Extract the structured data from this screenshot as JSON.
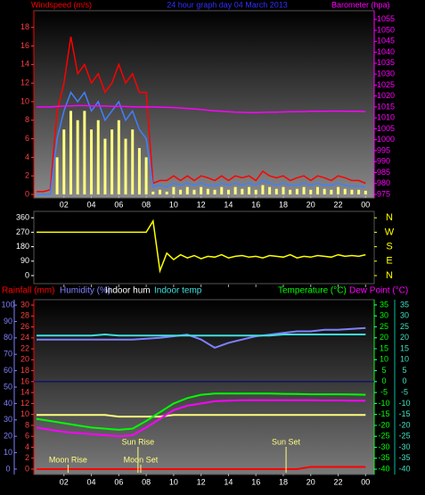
{
  "chart_data": [
    {
      "type": "line",
      "title": "24 hour graph day  04 March 2013",
      "ylabel": "Windspeed (m/s)",
      "y2label": "Barometer (hpa)",
      "x": [
        0,
        0.5,
        1,
        1.5,
        2,
        2.5,
        3,
        3.5,
        4,
        4.5,
        5,
        5.5,
        6,
        6.5,
        7,
        7.5,
        8,
        8.5,
        9,
        9.5,
        10,
        10.5,
        11,
        11.5,
        12,
        12.5,
        13,
        13.5,
        14,
        14.5,
        15,
        15.5,
        16,
        16.5,
        17,
        17.5,
        18,
        18.5,
        19,
        19.5,
        20,
        20.5,
        21,
        21.5,
        22,
        22.5,
        23,
        23.5,
        24
      ],
      "xlim": [
        0,
        24.5
      ],
      "xticks": [
        {
          "value": 2,
          "label": "02"
        },
        {
          "value": 4,
          "label": "04"
        },
        {
          "value": 6,
          "label": "06"
        },
        {
          "value": 8,
          "label": "08"
        },
        10,
        12,
        14,
        16,
        18,
        20,
        22,
        {
          "value": 24,
          "label": "00"
        }
      ],
      "ylim": [
        0,
        19.8
      ],
      "yticks": [
        0,
        2,
        4,
        6,
        8,
        10,
        12,
        14,
        16,
        18
      ],
      "y2lim": [
        975,
        1059
      ],
      "y2ticks": [
        975,
        980,
        985,
        990,
        995,
        1000,
        1005,
        1010,
        1015,
        1020,
        1025,
        1030,
        1035,
        1040,
        1045,
        1050,
        1055
      ],
      "series": [
        {
          "color": "#ffff80",
          "mark": "bar",
          "values": [
            0,
            0,
            0,
            4,
            7,
            9,
            8,
            9,
            7,
            8,
            6,
            7,
            8,
            6,
            7,
            5,
            4,
            0.3,
            0.5,
            0.3,
            0.8,
            0.5,
            0.8,
            0.5,
            0.8,
            0.6,
            0.5,
            0.8,
            0.5,
            0.8,
            0.6,
            0.8,
            0.5,
            1,
            0.8,
            0.6,
            0.8,
            0.5,
            0.6,
            0.8,
            0.5,
            0.8,
            0.6,
            0.5,
            0.8,
            0.6,
            0.5,
            0.5,
            0.4
          ]
        },
        {
          "color": "#ff0000",
          "values": [
            0.3,
            0.3,
            0.5,
            9,
            12,
            17,
            13,
            14,
            12,
            13,
            11,
            12,
            14,
            12,
            13,
            11,
            11,
            1.2,
            1.5,
            1.5,
            2,
            1.5,
            2,
            1.5,
            2,
            1.8,
            1.5,
            2,
            1.5,
            2,
            1.8,
            2,
            1.5,
            2.5,
            2,
            1.8,
            2,
            1.5,
            1.8,
            2,
            1.5,
            2,
            1.8,
            1.5,
            2,
            1.8,
            1.5,
            1.5,
            1.2
          ]
        },
        {
          "color": "#4080ff",
          "values": [
            0,
            0,
            0,
            6,
            9,
            11,
            10,
            11,
            9,
            10,
            8,
            9,
            10,
            8,
            9,
            7,
            6,
            0.8,
            1,
            0.8,
            1.2,
            1,
            1.2,
            1,
            1.2,
            1,
            0.9,
            1.2,
            1,
            1.2,
            1,
            1.2,
            1,
            1.5,
            1.2,
            1,
            1.2,
            1,
            1,
            1.2,
            1,
            1.2,
            1,
            1,
            1.2,
            1,
            0.9,
            0.9,
            0.8
          ]
        },
        {
          "color": "#ff00ff",
          "axis": "y2",
          "values": [
            1015,
            1015,
            1015,
            1015.2,
            1015.4,
            1015.5,
            1015.6,
            1015.6,
            1015.5,
            1015.5,
            1015.4,
            1015.3,
            1015.2,
            1015.2,
            1015.1,
            1015,
            1015,
            1015,
            1014.9,
            1014.8,
            1014.7,
            1014.5,
            1014.3,
            1014.1,
            1013.8,
            1013.5,
            1013.2,
            1013,
            1012.8,
            1012.6,
            1012.5,
            1012.4,
            1012.4,
            1012.5,
            1012.6,
            1012.6,
            1012.7,
            1012.8,
            1012.8,
            1012.9,
            1013,
            1013,
            1013,
            1013.1,
            1013.1,
            1013,
            1013,
            1013,
            1012.9
          ]
        }
      ]
    },
    {
      "type": "line",
      "x": [
        0,
        0.5,
        1,
        1.5,
        2,
        2.5,
        3,
        3.5,
        4,
        4.5,
        5,
        5.5,
        6,
        6.5,
        7,
        7.5,
        8,
        8.5,
        9,
        9.5,
        10,
        10.5,
        11,
        11.5,
        12,
        12.5,
        13,
        13.5,
        14,
        14.5,
        15,
        15.5,
        16,
        16.5,
        17,
        17.5,
        18,
        18.5,
        19,
        19.5,
        20,
        20.5,
        21,
        21.5,
        22,
        22.5,
        23,
        23.5,
        24
      ],
      "xlim": [
        0,
        24.5
      ],
      "xticks": [
        {
          "value": 2,
          "label": "02"
        },
        {
          "value": 4,
          "label": "04"
        },
        {
          "value": 6,
          "label": "06"
        },
        {
          "value": 8,
          "label": "08"
        },
        10,
        12,
        14,
        16,
        18,
        20,
        22,
        {
          "value": 24,
          "label": "00"
        }
      ],
      "ylim": [
        -50,
        400
      ],
      "yticks": [
        0,
        90,
        180,
        270,
        360
      ],
      "y2ticks": [
        {
          "value": 0,
          "label": "N"
        },
        {
          "value": 90,
          "label": "E"
        },
        {
          "value": 180,
          "label": "S"
        },
        {
          "value": 270,
          "label": "W"
        },
        {
          "value": 360,
          "label": "N"
        }
      ],
      "series": [
        {
          "color": "#ffff00",
          "values": [
            270,
            270,
            270,
            270,
            270,
            270,
            270,
            270,
            270,
            270,
            270,
            270,
            270,
            270,
            270,
            270,
            270,
            340,
            30,
            140,
            100,
            130,
            110,
            125,
            105,
            120,
            115,
            130,
            110,
            120,
            125,
            115,
            120,
            110,
            125,
            120,
            115,
            130,
            110,
            120,
            115,
            125,
            120,
            115,
            130,
            120,
            125,
            120,
            130
          ]
        }
      ]
    },
    {
      "type": "line",
      "x": [
        0,
        1,
        2,
        3,
        4,
        5,
        6,
        7,
        8,
        9,
        10,
        11,
        12,
        13,
        14,
        15,
        16,
        17,
        18,
        19,
        20,
        21,
        22,
        23,
        24
      ],
      "xlim": [
        0,
        24.5
      ],
      "xticks": [
        {
          "value": 2,
          "label": "02"
        },
        {
          "value": 4,
          "label": "04"
        },
        {
          "value": 6,
          "label": "06"
        },
        {
          "value": 8,
          "label": "08"
        },
        10,
        12,
        14,
        16,
        18,
        20,
        22,
        {
          "value": 24,
          "label": "00"
        }
      ],
      "ylim": [
        -2.2,
        103.3
      ],
      "yticks": [
        0,
        10,
        20,
        30,
        40,
        50,
        60,
        70,
        80,
        90,
        100
      ],
      "y2lim": [
        -0.66,
        30.99
      ],
      "y2ticks": [
        0,
        2,
        4,
        6,
        8,
        10,
        12,
        14,
        16,
        18,
        20,
        22,
        24,
        26,
        28,
        30
      ],
      "y3lim": [
        -41.6,
        37.4
      ],
      "y3ticks": [
        35,
        30,
        25,
        20,
        15,
        10,
        5,
        0,
        -5,
        -10,
        -15,
        -20,
        -25,
        -30,
        -35,
        -40
      ],
      "reference_line": {
        "axis": "y3",
        "value": 0,
        "color": "#000080"
      },
      "series": [
        {
          "name": "Rainfall (mm)",
          "color": "#ff0000",
          "axis": "y2",
          "values": [
            0,
            0,
            0,
            0,
            0,
            0,
            0,
            0,
            0,
            0,
            0,
            0,
            0,
            0,
            0,
            0,
            0,
            0,
            0,
            0,
            0.4,
            0.4,
            0.4,
            0.4,
            0.4
          ]
        },
        {
          "name": "Humidity (%)",
          "color": "#8080ff",
          "values": [
            79,
            79,
            79,
            79,
            79,
            79,
            79,
            79,
            79.5,
            80,
            81,
            82,
            79,
            74,
            77,
            79,
            81,
            82,
            83,
            84,
            84,
            85,
            85,
            85.5,
            86
          ]
        },
        {
          "name": "Indoor hum",
          "color": "#ffff80",
          "label_color": "#ffffff",
          "values": [
            33,
            33,
            33,
            33,
            33,
            33,
            32,
            32,
            32,
            32,
            33,
            33,
            33,
            33,
            33,
            33,
            33,
            33,
            33,
            33,
            33,
            33,
            33,
            33,
            33
          ]
        },
        {
          "name": "Indoor temp",
          "color": "#40e0e0",
          "axis": "y3",
          "values": [
            21,
            21,
            21,
            21,
            21,
            21.5,
            21,
            21,
            21,
            21,
            21,
            21,
            21,
            21,
            21,
            21,
            21,
            21,
            21.5,
            21.5,
            21.5,
            21.5,
            21.5,
            21.5,
            21.5
          ]
        },
        {
          "name": "Temperature (°C)",
          "color": "#00ff00",
          "axis": "y3",
          "values": [
            -17,
            -18,
            -19,
            -20,
            -21,
            -21.5,
            -22,
            -21.5,
            -18,
            -14,
            -10,
            -7.5,
            -6,
            -5.5,
            -5.5,
            -5.5,
            -5.5,
            -5.5,
            -5.6,
            -5.7,
            -5.8,
            -5.8,
            -5.8,
            -5.9,
            -6
          ]
        },
        {
          "name": "Dew Point (°C)",
          "color": "#ff00ff",
          "axis": "y3",
          "values": [
            -21,
            -22,
            -23,
            -23.5,
            -24,
            -24.5,
            -25,
            -24.5,
            -21,
            -17,
            -13,
            -11,
            -10,
            -9,
            -8.7,
            -8.5,
            -8.5,
            -8.5,
            -8.5,
            -8.5,
            -8.5,
            -8.6,
            -8.6,
            -8.7,
            -8.7
          ]
        }
      ],
      "annotations": [
        {
          "text": "Moon Rise",
          "x": 2.3
        },
        {
          "text": "Sun Rise",
          "x": 7.4
        },
        {
          "text": "Moon Set",
          "x": 7.6
        },
        {
          "text": "Sun Set",
          "x": 18.2
        }
      ]
    }
  ]
}
